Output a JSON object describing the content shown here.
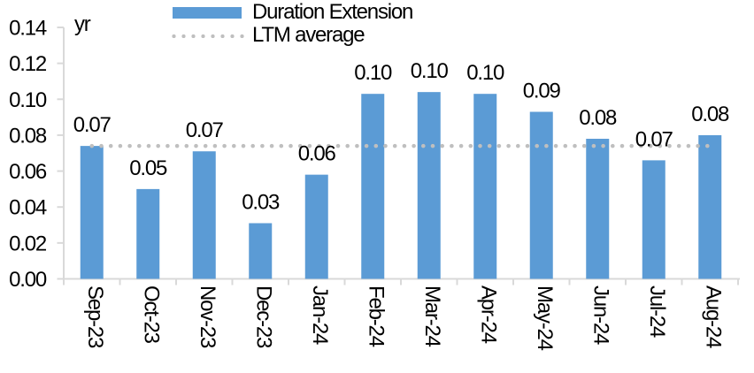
{
  "chart_data": {
    "type": "bar",
    "title": "",
    "unit_label": "yr",
    "categories": [
      "Sep-23",
      "Oct-23",
      "Nov-23",
      "Dec-23",
      "Jan-24",
      "Feb-24",
      "Mar-24",
      "Apr-24",
      "May-24",
      "Jun-24",
      "Jul-24",
      "Aug-24"
    ],
    "series": [
      {
        "name": "Duration Extension",
        "type": "bar",
        "color": "#5B9BD5",
        "values": [
          0.074,
          0.05,
          0.071,
          0.031,
          0.058,
          0.103,
          0.104,
          0.103,
          0.093,
          0.078,
          0.066,
          0.08
        ],
        "data_labels": [
          "0.07",
          "0.05",
          "0.07",
          "0.03",
          "0.06",
          "0.10",
          "0.10",
          "0.10",
          "0.09",
          "0.08",
          "0.07",
          "0.08"
        ]
      },
      {
        "name": "LTM average",
        "type": "dotted-line",
        "color": "#BFBFBF",
        "value": 0.074
      }
    ],
    "xlabel": "",
    "ylabel": "",
    "ylim": [
      0,
      0.14
    ],
    "y_ticks": [
      "0.00",
      "0.02",
      "0.04",
      "0.06",
      "0.08",
      "0.10",
      "0.12",
      "0.14"
    ],
    "legend_position": "top-center",
    "grid": "off",
    "axis_color": "#D9D9D9",
    "text_color": "#000000"
  }
}
